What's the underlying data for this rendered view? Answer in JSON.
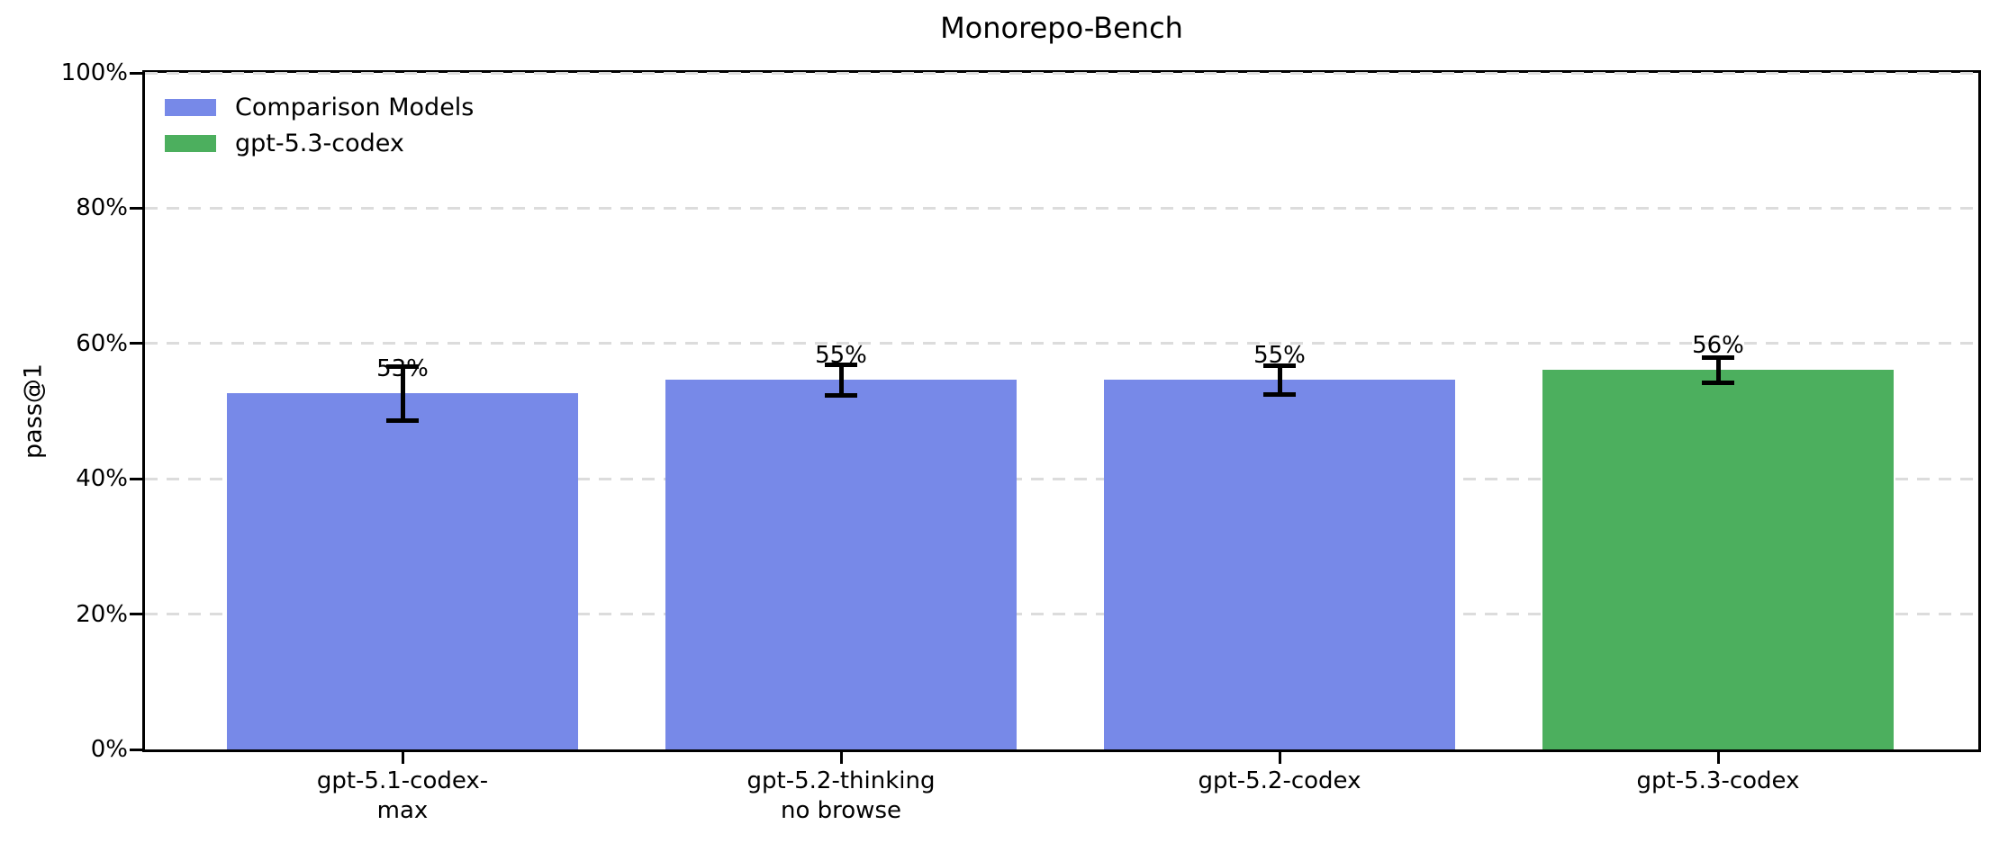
{
  "chart_data": {
    "type": "bar",
    "title": "Monorepo-Bench",
    "xlabel": "",
    "ylabel": "pass@1",
    "ylim": [
      0,
      100
    ],
    "grid": "horizontal-dashed",
    "yticks": [
      {
        "value": 0,
        "label": "0%"
      },
      {
        "value": 20,
        "label": "20%"
      },
      {
        "value": 40,
        "label": "40%"
      },
      {
        "value": 60,
        "label": "60%"
      },
      {
        "value": 80,
        "label": "80%"
      },
      {
        "value": 100,
        "label": "100%"
      }
    ],
    "categories": [
      "gpt-5.1-codex-max",
      "gpt-5.2-thinking no browse",
      "gpt-5.2-codex",
      "gpt-5.3-codex"
    ],
    "bars": [
      {
        "tick_lines": [
          "gpt-5.1-codex-",
          "max"
        ],
        "value": 52.7,
        "value_label": "53%",
        "error_margin": 4.0,
        "series": "Comparison Models",
        "color": "#7789E8"
      },
      {
        "tick_lines": [
          "gpt-5.2-thinking",
          "no browse"
        ],
        "value": 54.7,
        "value_label": "55%",
        "error_margin": 2.2,
        "series": "Comparison Models",
        "color": "#7789E8"
      },
      {
        "tick_lines": [
          "gpt-5.2-codex"
        ],
        "value": 54.7,
        "value_label": "55%",
        "error_margin": 2.1,
        "series": "Comparison Models",
        "color": "#7789E8"
      },
      {
        "tick_lines": [
          "gpt-5.3-codex"
        ],
        "value": 56.1,
        "value_label": "56%",
        "error_margin": 1.8,
        "series": "gpt-5.3-codex",
        "color": "#4CAF5E"
      }
    ],
    "legend": {
      "position": "upper-left",
      "entries": [
        {
          "label": "Comparison Models",
          "color": "#7789E8"
        },
        {
          "label": "gpt-5.3-codex",
          "color": "#4CAF5E"
        }
      ]
    },
    "colors": {
      "comparison_bar": "#7789E8",
      "highlight_bar": "#4CAF5E",
      "gridline": "#DCDCDC",
      "axis": "#000000",
      "error_bar": "#000000",
      "text": "#000000",
      "background": "#FFFFFF"
    }
  }
}
